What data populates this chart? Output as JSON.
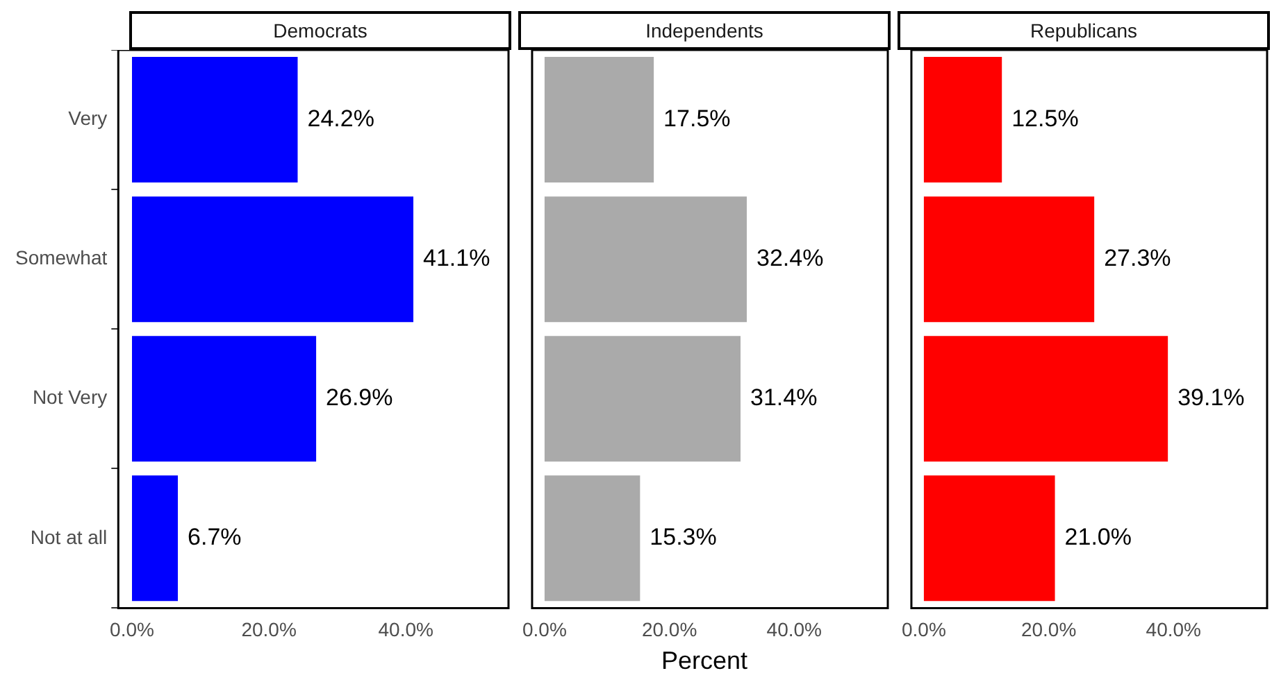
{
  "chart_data": [
    {
      "type": "bar",
      "orientation": "horizontal",
      "title": "Democrats",
      "categories": [
        "Very",
        "Somewhat",
        "Not Very",
        "Not at all"
      ],
      "values": [
        24.2,
        41.1,
        26.9,
        6.7
      ],
      "value_labels": [
        "24.2%",
        "41.1%",
        "26.9%",
        "6.7%"
      ],
      "color": "#0000ff",
      "xlim": [
        -2,
        55
      ],
      "xticks": [
        {
          "value": 0,
          "label": "0.0%"
        },
        {
          "value": 20,
          "label": "20.0%"
        },
        {
          "value": 40,
          "label": "40.0%"
        }
      ],
      "grid": false
    },
    {
      "type": "bar",
      "orientation": "horizontal",
      "title": "Independents",
      "xlabel": "Percent",
      "categories": [
        null,
        null,
        null,
        null
      ],
      "values": [
        17.5,
        32.4,
        31.4,
        15.3
      ],
      "value_labels": [
        "17.5%",
        "32.4%",
        "31.4%",
        "15.3%"
      ],
      "color": "#aaaaaa",
      "xlim": [
        -2,
        55
      ],
      "xticks": [
        {
          "value": 0,
          "label": "0.0%"
        },
        {
          "value": 20,
          "label": "20.0%"
        },
        {
          "value": 40,
          "label": "40.0%"
        }
      ],
      "grid": false,
      "tick_labels": "x"
    },
    {
      "type": "bar",
      "orientation": "horizontal",
      "title": "Republicans",
      "categories": [
        null,
        null,
        null,
        null
      ],
      "values": [
        12.5,
        27.3,
        39.1,
        21.0
      ],
      "value_labels": [
        "12.5%",
        "27.3%",
        "39.1%",
        "21.0%"
      ],
      "color": "#ff0000",
      "xlim": [
        -2,
        55
      ],
      "xticks": [
        {
          "value": 0,
          "label": "0.0%"
        },
        {
          "value": 20,
          "label": "20.0%"
        },
        {
          "value": 40,
          "label": "40.0%"
        }
      ],
      "grid": false,
      "tick_labels": "x"
    }
  ]
}
